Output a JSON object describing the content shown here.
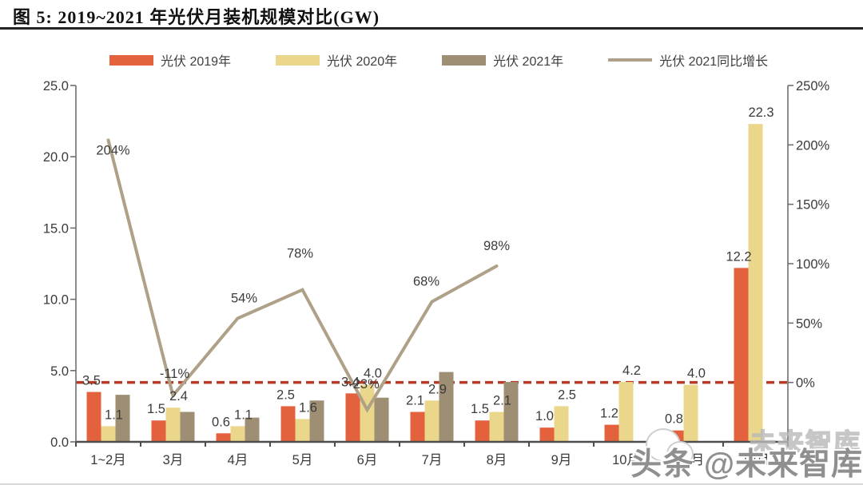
{
  "figure": {
    "title": "图 5: 2019~2021 年光伏月装机规模对比(GW)"
  },
  "legend": {
    "items": [
      {
        "label": "光伏 2019年",
        "color": "#E4613E",
        "marker": "bar"
      },
      {
        "label": "光伏 2020年",
        "color": "#EBD78C",
        "marker": "bar"
      },
      {
        "label": "光伏 2021年",
        "color": "#9E8E73",
        "marker": "bar"
      },
      {
        "label": "光伏 2021同比增长",
        "color": "#AFA088",
        "marker": "line"
      }
    ]
  },
  "chart_data": {
    "type": "bar",
    "combo": "bar+line",
    "title": "图 5: 2019~2021 年光伏月装机规模对比(GW)",
    "categories": [
      "1~2月",
      "3月",
      "4月",
      "5月",
      "6月",
      "7月",
      "8月",
      "9月",
      "10月",
      "11月",
      "12月"
    ],
    "series": [
      {
        "name": "光伏 2019年",
        "type": "bar",
        "axis": "left",
        "color": "#E4613E",
        "show_labels": true,
        "values": [
          3.5,
          1.5,
          0.6,
          2.5,
          3.4,
          2.1,
          1.5,
          1.0,
          1.2,
          0.8,
          12.2
        ]
      },
      {
        "name": "光伏 2020年",
        "type": "bar",
        "axis": "left",
        "color": "#EBD78C",
        "show_labels": true,
        "values": [
          1.1,
          2.4,
          1.1,
          1.6,
          4.0,
          2.9,
          2.1,
          2.5,
          4.2,
          4.0,
          22.3
        ]
      },
      {
        "name": "光伏 2021年",
        "type": "bar",
        "axis": "left",
        "color": "#9E8E73",
        "show_labels": false,
        "values": [
          3.3,
          2.1,
          1.7,
          2.9,
          3.1,
          4.9,
          4.2,
          null,
          null,
          null,
          null
        ]
      },
      {
        "name": "光伏 2021同比增长",
        "type": "line",
        "axis": "right",
        "color": "#AFA088",
        "unit": "%",
        "show_labels": true,
        "values": [
          204,
          -11,
          54,
          78,
          -23,
          68,
          98,
          null,
          null,
          null,
          null
        ]
      }
    ],
    "left_axis": {
      "min": 0,
      "max": 25,
      "tick_values": [
        0,
        5,
        10,
        15,
        20,
        25
      ],
      "tick_labels": [
        "0.0",
        "5.0",
        "10.0",
        "15.0",
        "20.0",
        "25.0"
      ]
    },
    "right_axis": {
      "min": -50,
      "max": 250,
      "tick_values": [
        0,
        50,
        100,
        150,
        200,
        250
      ],
      "tick_labels": [
        "0%",
        "50%",
        "100%",
        "150%",
        "200%",
        "250%"
      ]
    },
    "reference_line": {
      "axis": "right",
      "value": 0,
      "style": "dashed",
      "color": "#B93A26"
    },
    "grid": "off",
    "legend_position": "top"
  },
  "watermark": {
    "text": "头条 @未来智库",
    "ghost_text": "未来智库"
  }
}
